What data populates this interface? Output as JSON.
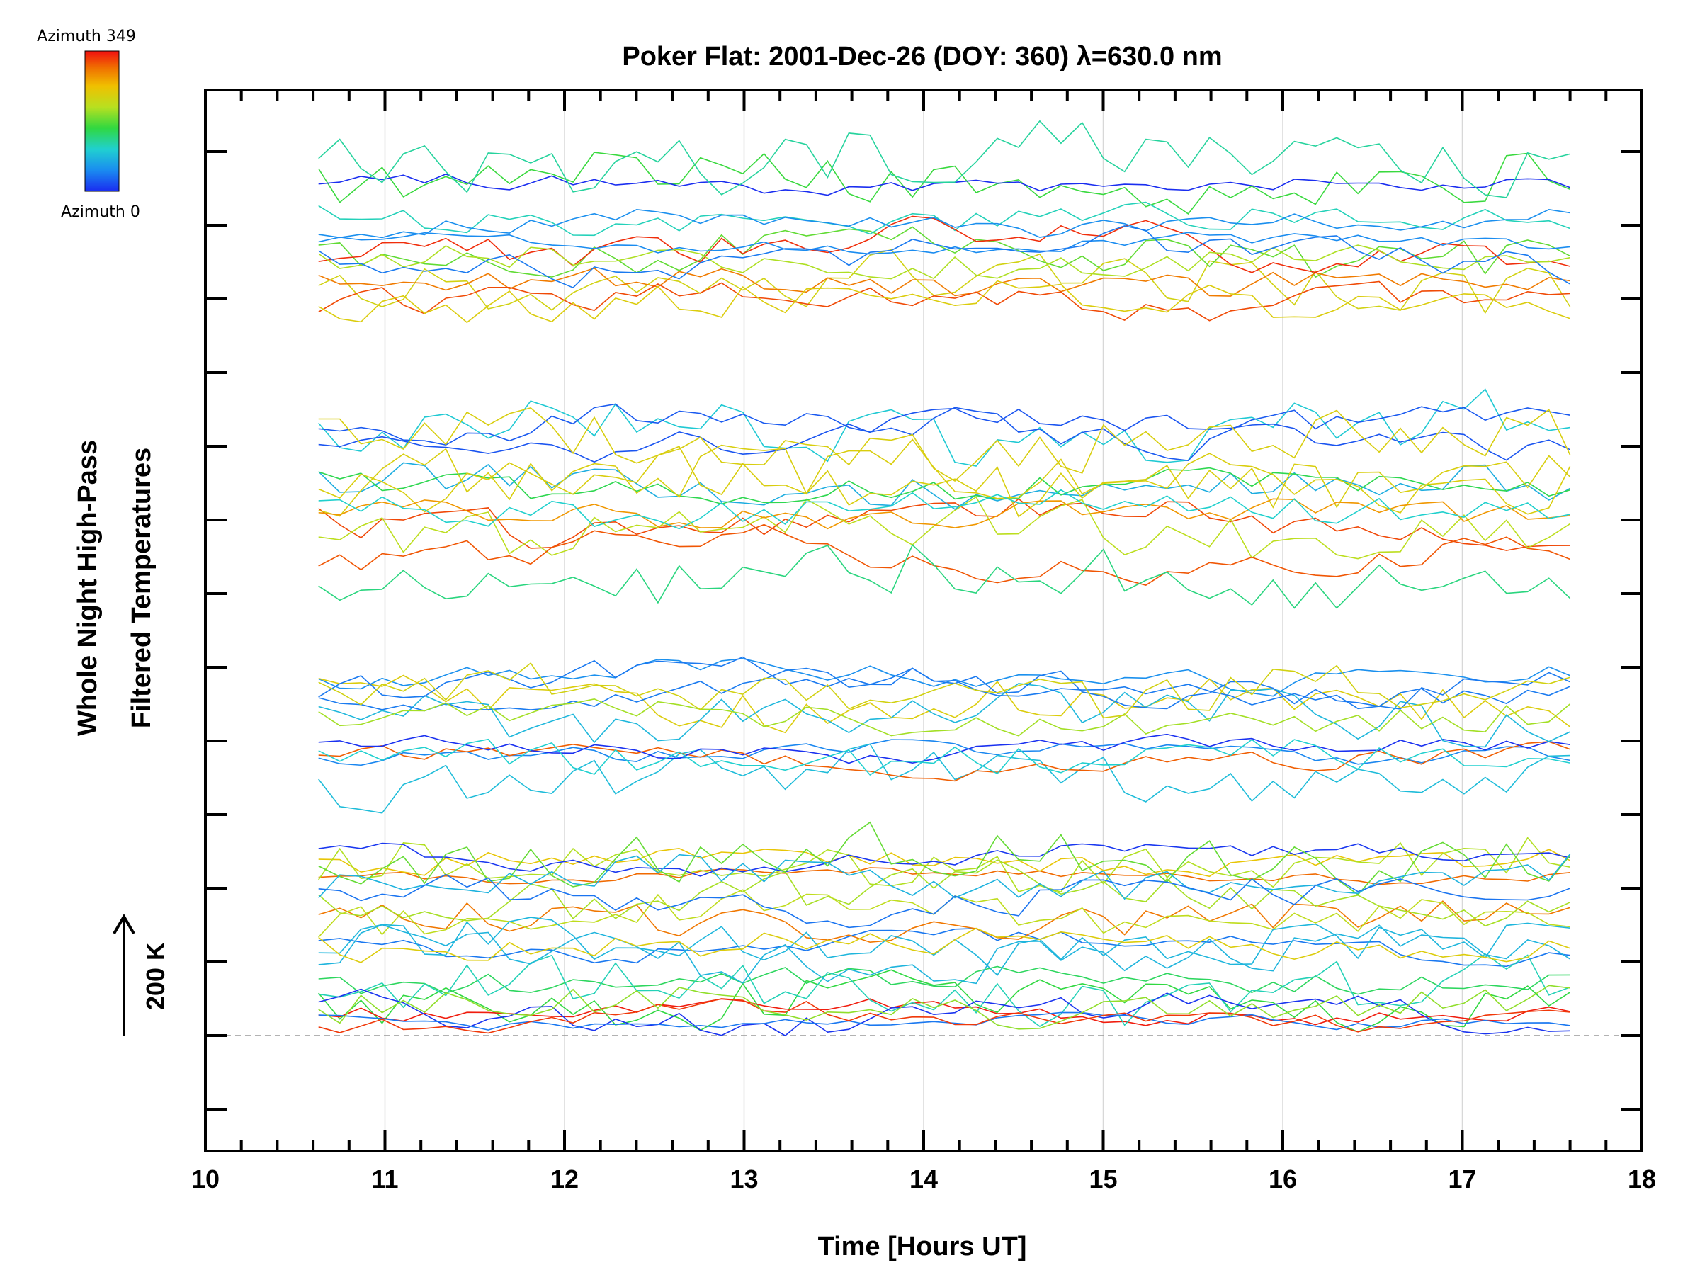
{
  "chart_data": {
    "type": "line",
    "title": "Poker Flat: 2001-Dec-26 (DOY: 360) λ=630.0 nm",
    "xlabel": "Time [Hours UT]",
    "ylabel_line1": "Whole Night High-Pass",
    "ylabel_line2": "Filtered Temperatures",
    "scale_label": "200 K",
    "xlim": [
      10,
      18
    ],
    "x_ticks": [
      "10",
      "11",
      "12",
      "13",
      "14",
      "15",
      "16",
      "17",
      "18"
    ],
    "y_axis_tick_labels": "none",
    "x_grid": true,
    "colorbar": {
      "top_label": "Azimuth 349",
      "bottom_label": "Azimuth 0",
      "colormap": "rainbow (blue→cyan→green→yellow→red)",
      "colors": [
        "#1a2cf0",
        "#1a8cf0",
        "#20d0d0",
        "#30d840",
        "#b8e020",
        "#f0c000",
        "#f07000",
        "#f01010"
      ]
    },
    "time_range_hours": [
      10.63,
      17.6
    ],
    "sample_count_per_series": 60,
    "series_note": "Dozens of filtered temperature traces, one per azimuth (0–349), vertically stacked in groups; traces colored by azimuth",
    "baseline_reference": "dashed horizontal line at the 200 K scale-bar base"
  }
}
